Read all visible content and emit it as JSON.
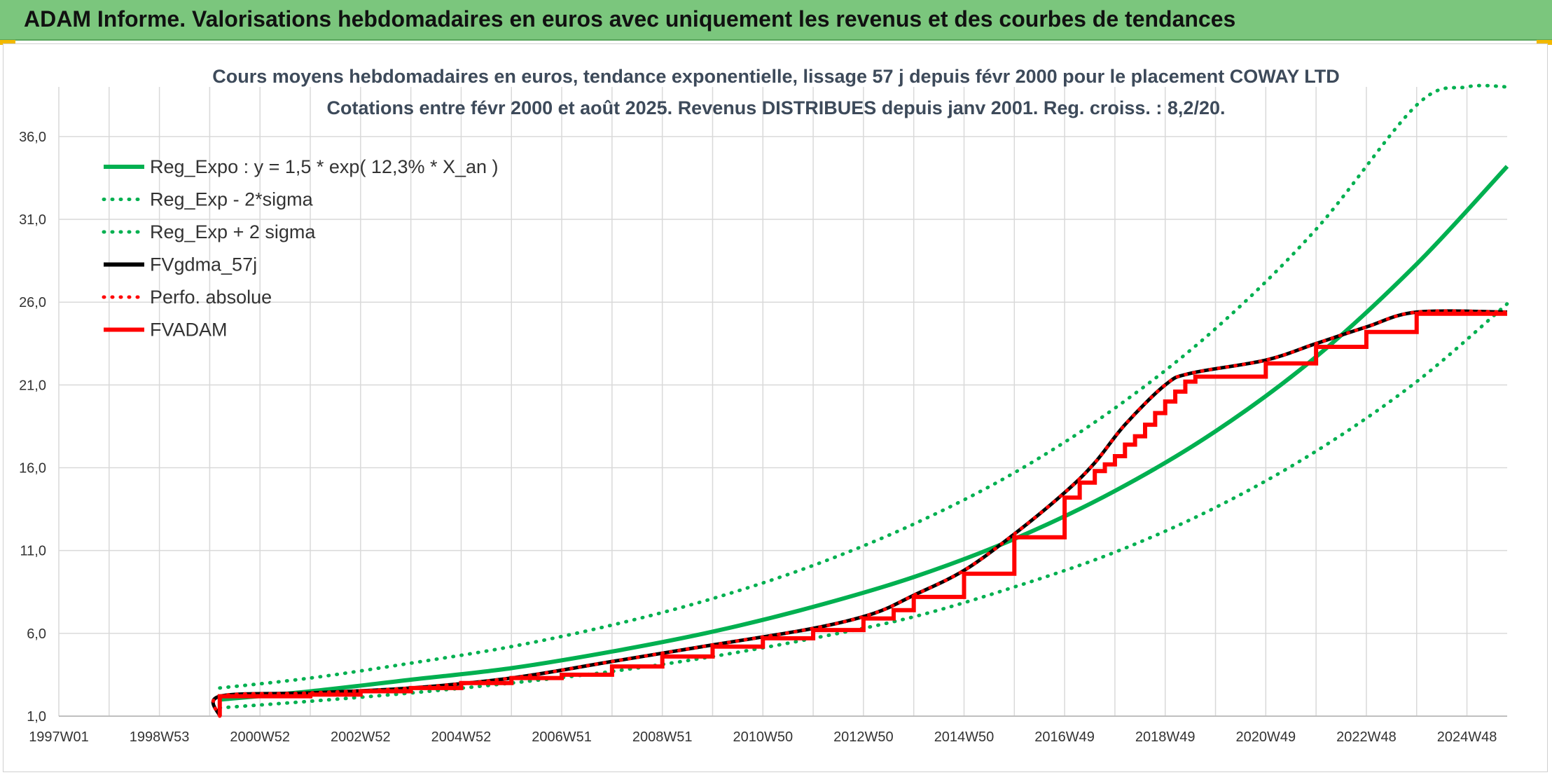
{
  "header": {
    "title": "ADAM Informe. Valorisations hebdomadaires en euros avec uniquement les revenus et des courbes de tendances"
  },
  "colors": {
    "banner": "#7bc67d",
    "green": "#00b050",
    "red": "#ff0000",
    "black": "#000000",
    "grid": "#d9d9d9",
    "accent": "#f2b900"
  },
  "chart_data": {
    "type": "line",
    "title": "Cours moyens hebdomadaires en euros, tendance exponentielle, lissage 57 j depuis févr 2000 pour le placement COWAY LTD",
    "subtitle": "Cotations entre févr 2000 et août 2025. Revenus DISTRIBUES depuis janv 2001. Reg. croiss. : 8,2/20.",
    "xlabel": "",
    "ylabel": "",
    "x_range": [
      1997.0,
      2025.8
    ],
    "ylim": [
      1.0,
      39.0
    ],
    "y_ticks": [
      "1,0",
      "6,0",
      "11,0",
      "16,0",
      "21,0",
      "26,0",
      "31,0",
      "36,0"
    ],
    "y_tick_values": [
      1,
      6,
      11,
      16,
      21,
      26,
      31,
      36
    ],
    "x_ticks": [
      "1997W01",
      "1998W53",
      "2000W52",
      "2002W52",
      "2004W52",
      "2006W51",
      "2008W51",
      "2010W50",
      "2012W50",
      "2014W50",
      "2016W49",
      "2018W49",
      "2020W49",
      "2022W48",
      "2024W48"
    ],
    "x_tick_values": [
      1997.0,
      1999.0,
      2001.0,
      2003.0,
      2005.0,
      2007.0,
      2009.0,
      2011.0,
      2013.0,
      2015.0,
      2017.0,
      2019.0,
      2021.0,
      2023.0,
      2025.0
    ],
    "grid": true,
    "legend_position": "top-left",
    "series": [
      {
        "name": "Reg_Expo : y = 1,5 * exp( 12,3% *  X_an )",
        "style": "solid",
        "color": "#00b050",
        "x": [
          2000.2,
          2002,
          2004,
          2006,
          2008,
          2010,
          2012,
          2014,
          2016,
          2018,
          2020,
          2022,
          2024,
          2025.8
        ],
        "y": [
          2.0,
          2.5,
          3.2,
          3.9,
          4.9,
          6.1,
          7.6,
          9.4,
          11.7,
          14.6,
          18.2,
          22.7,
          28.3,
          34.2
        ]
      },
      {
        "name": "Reg_Exp - 2*sigma",
        "style": "dotted",
        "color": "#00b050",
        "x": [
          2000.2,
          2002,
          2004,
          2006,
          2008,
          2010,
          2012,
          2014,
          2016,
          2018,
          2020,
          2022,
          2024,
          2025.8
        ],
        "y": [
          1.5,
          1.9,
          2.4,
          3.0,
          3.7,
          4.6,
          5.7,
          7.0,
          8.8,
          10.9,
          13.6,
          17.0,
          21.2,
          25.9
        ]
      },
      {
        "name": "Reg_Exp + 2 sigma",
        "style": "dotted",
        "color": "#00b050",
        "x": [
          2000.2,
          2002,
          2004,
          2006,
          2008,
          2010,
          2012,
          2014,
          2016,
          2018,
          2020,
          2022,
          2024,
          2025.0,
          2025.8
        ],
        "y": [
          2.7,
          3.3,
          4.2,
          5.2,
          6.5,
          8.1,
          10.1,
          12.6,
          15.7,
          19.6,
          24.4,
          30.4,
          37.9,
          39.0,
          39.0
        ]
      },
      {
        "name": "FVgdma_57j",
        "style": "solid",
        "color": "#000000",
        "x": [
          2000.2,
          2000.2,
          2002,
          2004,
          2006,
          2008,
          2010,
          2012,
          2013.2,
          2014,
          2015,
          2016,
          2017,
          2017.6,
          2018.2,
          2019,
          2019.5,
          2021,
          2022,
          2023,
          2024,
          2025.8
        ],
        "y": [
          1.0,
          2.2,
          2.4,
          2.7,
          3.3,
          4.3,
          5.3,
          6.3,
          7.2,
          8.3,
          9.8,
          12.0,
          14.5,
          16.3,
          18.6,
          21.0,
          21.7,
          22.5,
          23.5,
          24.5,
          25.4,
          25.4
        ]
      },
      {
        "name": "Perfo. absolue",
        "style": "dotted",
        "color": "#ff0000",
        "x": [
          2000.2,
          2000.2,
          2002,
          2004,
          2006,
          2008,
          2010,
          2012,
          2013.2,
          2014,
          2015,
          2016,
          2017,
          2017.6,
          2018.2,
          2019,
          2019.5,
          2021,
          2022,
          2023,
          2024,
          2025.8
        ],
        "y": [
          1.0,
          2.2,
          2.4,
          2.7,
          3.3,
          4.3,
          5.3,
          6.3,
          7.2,
          8.3,
          9.8,
          12.0,
          14.5,
          16.3,
          18.6,
          21.0,
          21.7,
          22.5,
          23.5,
          24.5,
          25.4,
          25.4
        ]
      },
      {
        "name": "FVADAM",
        "style": "step",
        "color": "#ff0000",
        "x": [
          2000.2,
          2000.2,
          2002.0,
          2003.0,
          2004.0,
          2005.0,
          2006.0,
          2007.0,
          2008.0,
          2009.0,
          2010.0,
          2011.0,
          2012.0,
          2013.0,
          2013.6,
          2014.0,
          2015.0,
          2016.0,
          2017.0,
          2017.3,
          2017.6,
          2017.8,
          2018.0,
          2018.2,
          2018.4,
          2018.6,
          2018.8,
          2019.0,
          2019.2,
          2019.4,
          2019.6,
          2020.0,
          2021.0,
          2022.0,
          2023.0,
          2024.0,
          2025.8
        ],
        "y": [
          1.0,
          2.2,
          2.3,
          2.5,
          2.7,
          3.0,
          3.3,
          3.5,
          4.0,
          4.6,
          5.2,
          5.7,
          6.2,
          6.9,
          7.4,
          8.2,
          9.6,
          11.8,
          14.2,
          15.1,
          15.8,
          16.2,
          16.7,
          17.4,
          17.9,
          18.6,
          19.3,
          20.0,
          20.6,
          21.2,
          21.5,
          21.5,
          22.3,
          23.3,
          24.2,
          25.3,
          25.3
        ]
      }
    ]
  }
}
